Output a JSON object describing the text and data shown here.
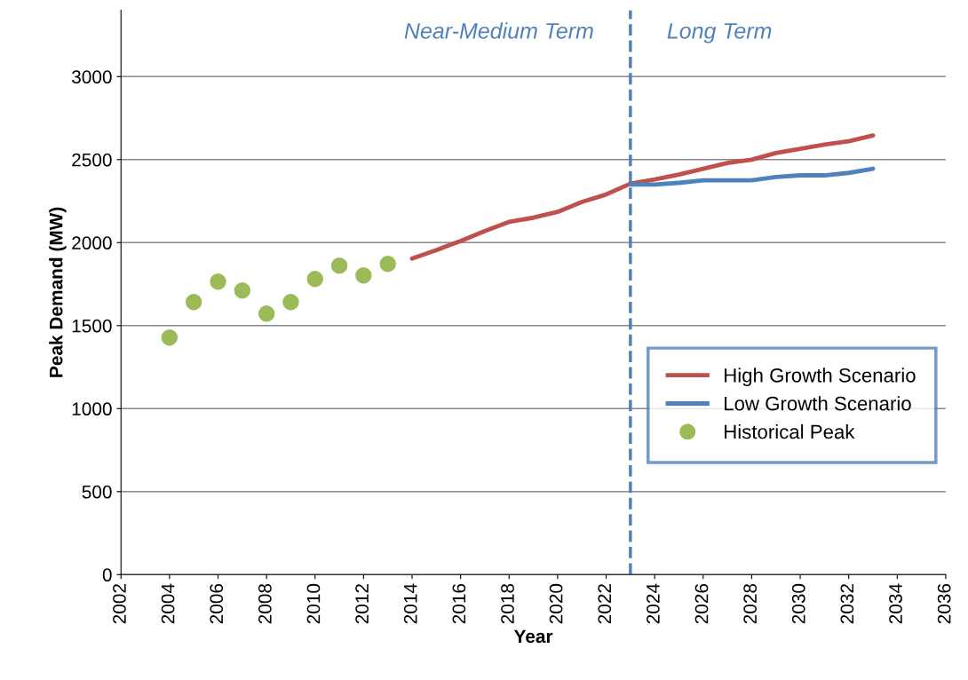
{
  "chart_data": {
    "type": "line",
    "xlabel": "Year",
    "ylabel": "Peak Demand (MW)",
    "xlim": [
      2002,
      2036
    ],
    "xticks": [
      2002,
      2004,
      2006,
      2008,
      2010,
      2012,
      2014,
      2016,
      2018,
      2020,
      2022,
      2024,
      2026,
      2028,
      2030,
      2032,
      2034,
      2036
    ],
    "ylim": [
      0,
      3400
    ],
    "yticks": [
      0,
      500,
      1000,
      1500,
      2000,
      2500,
      3000
    ],
    "grid": "y",
    "legend": "right",
    "series": [
      {
        "name": "High Growth Scenario",
        "color": "#c0504d",
        "x": [
          2014,
          2015,
          2016,
          2017,
          2018,
          2019,
          2020,
          2021,
          2022,
          2023,
          2024,
          2025,
          2026,
          2027,
          2028,
          2029,
          2030,
          2031,
          2032,
          2033
        ],
        "values": [
          1904,
          1955,
          2010,
          2070,
          2125,
          2150,
          2185,
          2245,
          2290,
          2355,
          2380,
          2410,
          2445,
          2480,
          2500,
          2540,
          2565,
          2590,
          2610,
          2645
        ]
      },
      {
        "name": "Low Growth Scenario",
        "color": "#4f81bd",
        "x": [
          2023,
          2024,
          2025,
          2026,
          2027,
          2028,
          2029,
          2030,
          2031,
          2032,
          2033
        ],
        "values": [
          2350,
          2350,
          2360,
          2375,
          2375,
          2375,
          2395,
          2405,
          2405,
          2420,
          2445
        ]
      },
      {
        "name": "Historical Peak",
        "type": "scatter",
        "color": "#9bbb59",
        "x": [
          2004,
          2005,
          2006,
          2007,
          2008,
          2009,
          2010,
          2011,
          2012,
          2013
        ],
        "values": [
          1428,
          1642,
          1765,
          1711,
          1572,
          1642,
          1781,
          1861,
          1802,
          1872
        ]
      }
    ],
    "ref_lines": [
      {
        "axis": "x",
        "value": 2023,
        "color": "#4f81bd",
        "line_style": "dashed"
      }
    ],
    "annotations": [
      "Near-Medium Term",
      "Long Term"
    ]
  }
}
